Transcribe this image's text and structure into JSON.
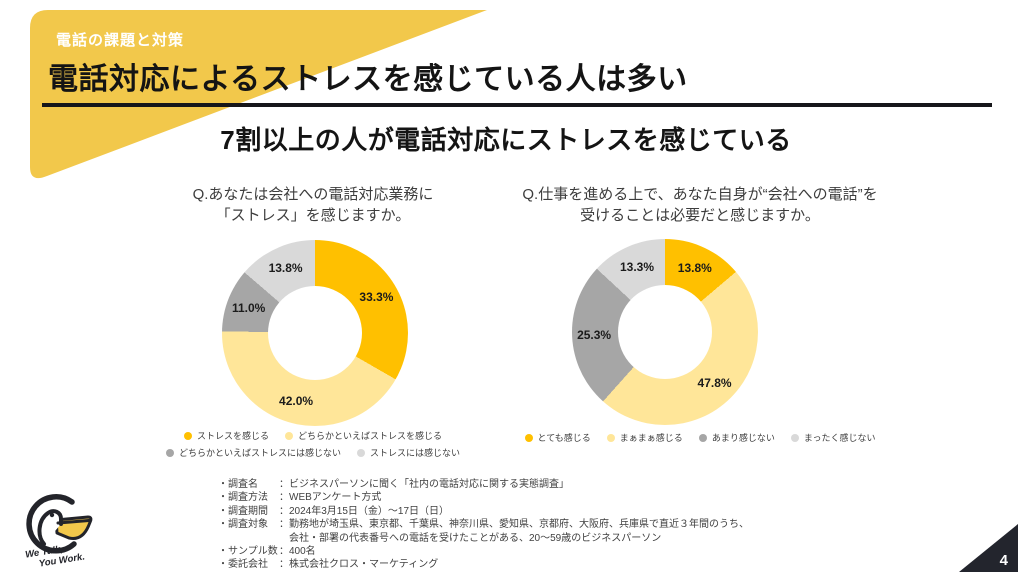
{
  "header": {
    "eyebrow": "電話の課題と対策",
    "title": "電話対応によるストレスを感じている人は多い",
    "subtitle": "7割以上の人が電話対応にストレスを感じている"
  },
  "colors": {
    "banner_yellow": "#F2C84B",
    "accent_orange": "#FFC000",
    "light_yellow": "#FFE699",
    "dark_gray": "#A6A6A6",
    "light_gray": "#D9D9D9",
    "underline_black": "#16161a",
    "page_triangle": "#23252D"
  },
  "chart_data": [
    {
      "type": "pie",
      "subtype": "donut",
      "question": "Q.あなたは会社への電話対応業務に\n「ストレス」を感じますか。",
      "labels": [
        "ストレスを感じる",
        "どちらかといえばストレスを感じる",
        "どちらかといえばストレスには感じない",
        "ストレスには感じない"
      ],
      "values": [
        33.3,
        42.0,
        11.0,
        13.8
      ],
      "value_labels": [
        "33.3%",
        "42.0%",
        "11.0%",
        "13.8%"
      ],
      "colors": [
        "#FFC000",
        "#FFE699",
        "#A6A6A6",
        "#D9D9D9"
      ],
      "start_angle_deg": 0,
      "direction": "clockwise",
      "hole_ratio": 0.5,
      "legend_rows": [
        [
          0,
          1
        ],
        [
          2,
          3
        ]
      ],
      "legend_position": "bottom"
    },
    {
      "type": "pie",
      "subtype": "donut",
      "question": "Q.仕事を進める上で、あなた自身が“会社への電話”を\n受けることは必要だと感じますか。",
      "labels": [
        "とても感じる",
        "まぁまぁ感じる",
        "あまり感じない",
        "まったく感じない"
      ],
      "values": [
        13.8,
        47.8,
        25.3,
        13.3
      ],
      "value_labels": [
        "13.8%",
        "47.8%",
        "25.3%",
        "13.3%"
      ],
      "colors": [
        "#FFC000",
        "#FFE699",
        "#A6A6A6",
        "#D9D9D9"
      ],
      "start_angle_deg": 0,
      "direction": "clockwise",
      "hole_ratio": 0.5,
      "legend_rows": [
        [
          0,
          1,
          2,
          3
        ]
      ],
      "legend_position": "bottom"
    }
  ],
  "survey_notes": {
    "rows": [
      {
        "label": "・調査名",
        "value": "：ビジネスパーソンに聞く「社内の電話対応に関する実態調査」"
      },
      {
        "label": "・調査方法",
        "value": "：WEBアンケート方式"
      },
      {
        "label": "・調査期間",
        "value": "：2024年3月15日（金）～17日（日）"
      },
      {
        "label": "・調査対象",
        "value": "：勤務地が埼玉県、東京都、千葉県、神奈川県、愛知県、京都府、大阪府、兵庫県で直近３年間のうち、\n　会社・部署の代表番号への電話を受けたことがある、20～59歳のビジネスパーソン"
      },
      {
        "label": "・サンプル数",
        "value": "：400名"
      },
      {
        "label": "・委託会社",
        "value": "：株式会社クロス・マーケティング"
      }
    ]
  },
  "logo": {
    "line1": "We Talk,",
    "line2": "You Work."
  },
  "footer": {
    "page_number": "4"
  }
}
